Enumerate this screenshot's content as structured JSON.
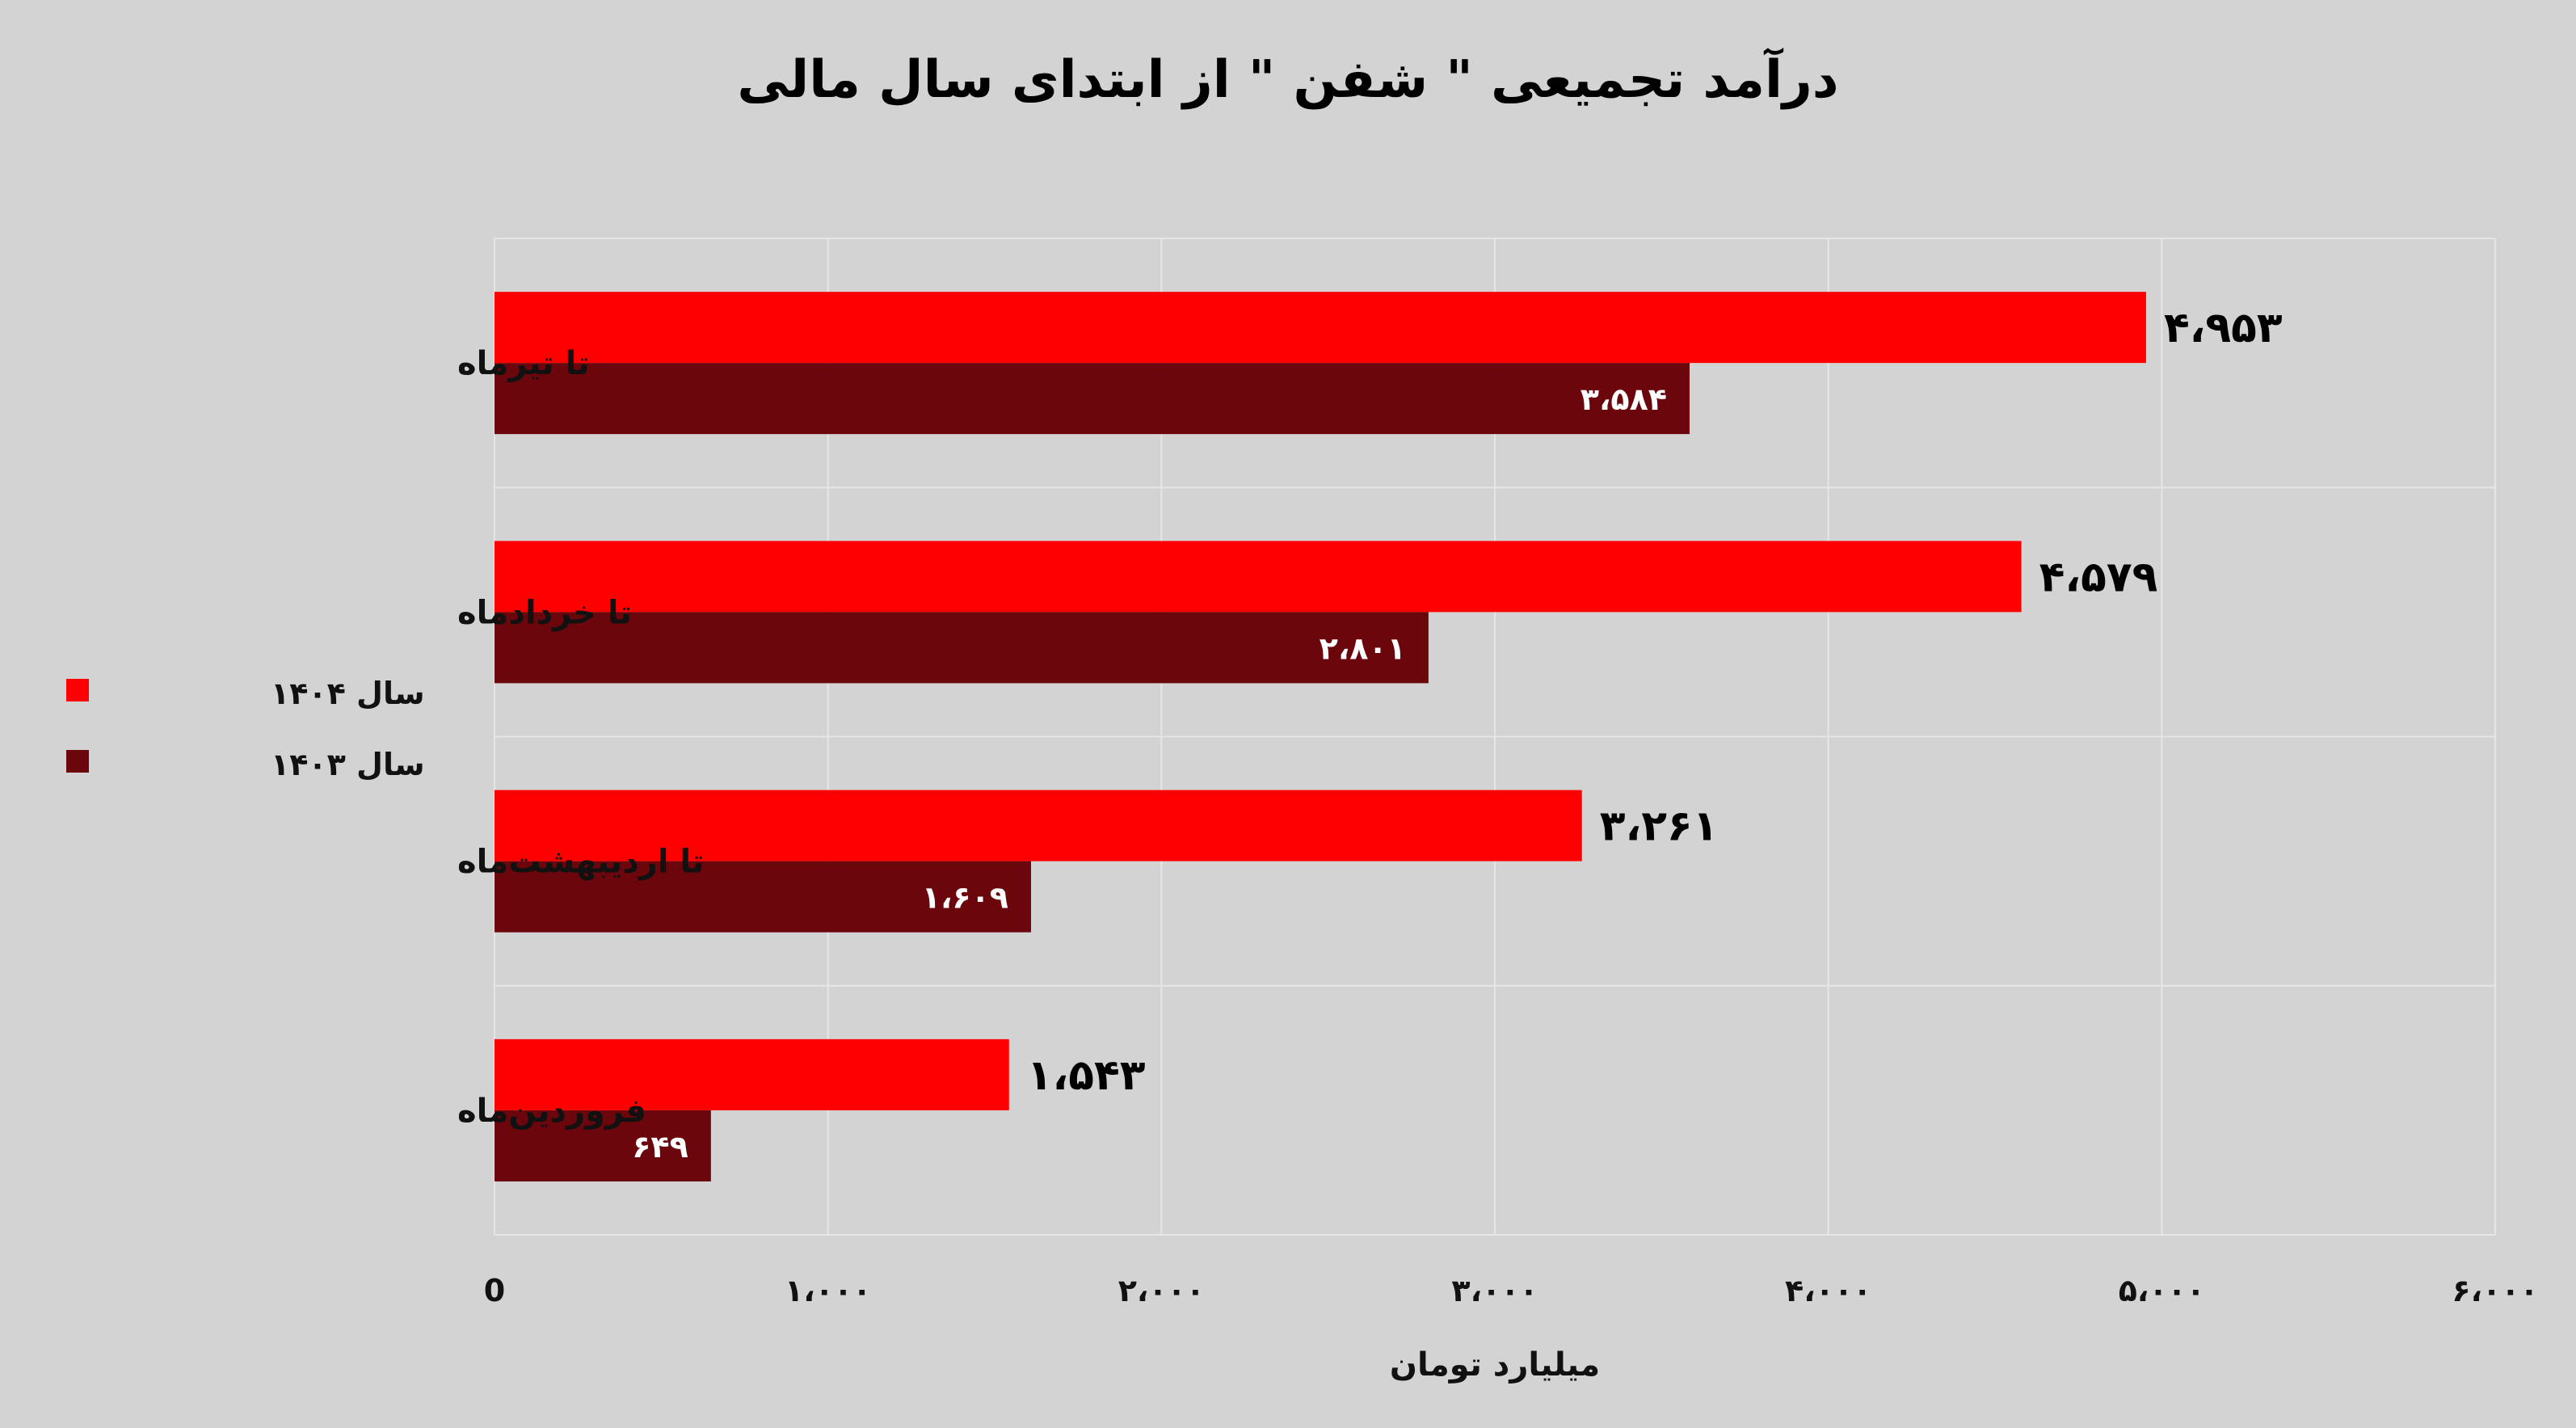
{
  "chart_data": {
    "type": "bar",
    "orientation": "horizontal",
    "title": "درآمد تجمیعی \" شفن \" از ابتدای سال مالی",
    "xlabel": "میلیارد تومان",
    "ylabel": "",
    "xlim": [
      0,
      6000
    ],
    "x_ticks": [
      0,
      1000,
      2000,
      3000,
      4000,
      5000,
      6000
    ],
    "x_tick_labels": [
      "0",
      "۱،۰۰۰",
      "۲،۰۰۰",
      "۳،۰۰۰",
      "۴،۰۰۰",
      "۵،۰۰۰",
      "۶،۰۰۰"
    ],
    "grid": true,
    "legend_position": "left",
    "categories": [
      "تا تیرماه",
      "تا خردادماه",
      "تا اردیبهشت‌ماه",
      "فروردین‌ماه"
    ],
    "series": [
      {
        "name": "سال ۱۴۰۴",
        "color": "#ff0000",
        "values": [
          4953,
          4579,
          3261,
          1543
        ],
        "value_labels": [
          "۴،۹۵۳",
          "۴،۵۷۹",
          "۳،۲۶۱",
          "۱،۵۴۳"
        ],
        "label_position": "outside-end"
      },
      {
        "name": "سال ۱۴۰۳",
        "color": "#6b060c",
        "values": [
          3584,
          2801,
          1609,
          649
        ],
        "value_labels": [
          "۳،۵۸۴",
          "۲،۸۰۱",
          "۱،۶۰۹",
          "۶۴۹"
        ],
        "label_position": "inside-end"
      }
    ]
  },
  "colors": {
    "background": "#d3d3d3",
    "gridline": "#e6e6e6"
  }
}
